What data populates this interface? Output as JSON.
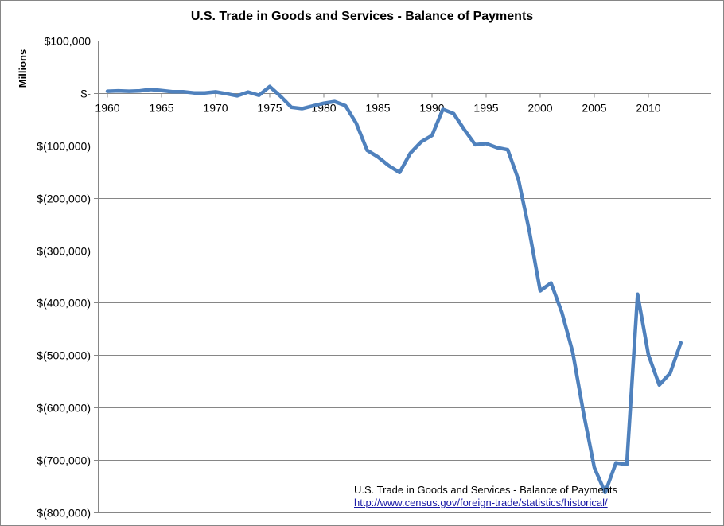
{
  "chart_data": {
    "type": "line",
    "title": "U.S. Trade in Goods and Services - Balance of Payments",
    "xlabel": "",
    "ylabel": "Millions",
    "ylim": [
      -800000,
      100000
    ],
    "xlim": [
      1960,
      2013
    ],
    "grid": true,
    "y_ticks": [
      {
        "value": 100000,
        "label": "$100,000"
      },
      {
        "value": 0,
        "label": "$-"
      },
      {
        "value": -100000,
        "label": "$(100,000)"
      },
      {
        "value": -200000,
        "label": "$(200,000)"
      },
      {
        "value": -300000,
        "label": "$(300,000)"
      },
      {
        "value": -400000,
        "label": "$(400,000)"
      },
      {
        "value": -500000,
        "label": "$(500,000)"
      },
      {
        "value": -600000,
        "label": "$(600,000)"
      },
      {
        "value": -700000,
        "label": "$(700,000)"
      },
      {
        "value": -800000,
        "label": "$(800,000)"
      }
    ],
    "x_ticks": [
      {
        "value": 1960,
        "label": "1960"
      },
      {
        "value": 1965,
        "label": "1965"
      },
      {
        "value": 1970,
        "label": "1970"
      },
      {
        "value": 1975,
        "label": "1975"
      },
      {
        "value": 1980,
        "label": "1980"
      },
      {
        "value": 1985,
        "label": "1985"
      },
      {
        "value": 1990,
        "label": "1990"
      },
      {
        "value": 1995,
        "label": "1995"
      },
      {
        "value": 2000,
        "label": "2000"
      },
      {
        "value": 2005,
        "label": "2005"
      },
      {
        "value": 2010,
        "label": "2010"
      }
    ],
    "series": [
      {
        "name": "Balance of Payments",
        "color": "#4f81bd",
        "x": [
          1960,
          1961,
          1962,
          1963,
          1964,
          1965,
          1966,
          1967,
          1968,
          1969,
          1970,
          1971,
          1972,
          1973,
          1974,
          1975,
          1976,
          1977,
          1978,
          1979,
          1980,
          1981,
          1982,
          1983,
          1984,
          1985,
          1986,
          1987,
          1988,
          1989,
          1990,
          1991,
          1992,
          1993,
          1994,
          1995,
          1996,
          1997,
          1998,
          1999,
          2000,
          2001,
          2002,
          2003,
          2004,
          2005,
          2006,
          2007,
          2008,
          2009,
          2010,
          2011,
          2012,
          2013
        ],
        "values": [
          3500,
          4200,
          3400,
          4200,
          6800,
          4700,
          2600,
          2600,
          300,
          100,
          2300,
          -1300,
          -5400,
          1900,
          -4300,
          12400,
          -6100,
          -27200,
          -29800,
          -24600,
          -19400,
          -16200,
          -24200,
          -57800,
          -109100,
          -121900,
          -138500,
          -151700,
          -114600,
          -93100,
          -80900,
          -31100,
          -39200,
          -70300,
          -98600,
          -96400,
          -104100,
          -108300,
          -166100,
          -263800,
          -377300,
          -362300,
          -418300,
          -493900,
          -609900,
          -714200,
          -761700,
          -705400,
          -708700,
          -383800,
          -499400,
          -556800,
          -534700,
          -476400
        ]
      }
    ]
  },
  "source_note": {
    "text": "U.S. Trade in Goods and Services - Balance of Payments",
    "link": "http://www.census.gov/foreign-trade/statistics/historical/"
  }
}
